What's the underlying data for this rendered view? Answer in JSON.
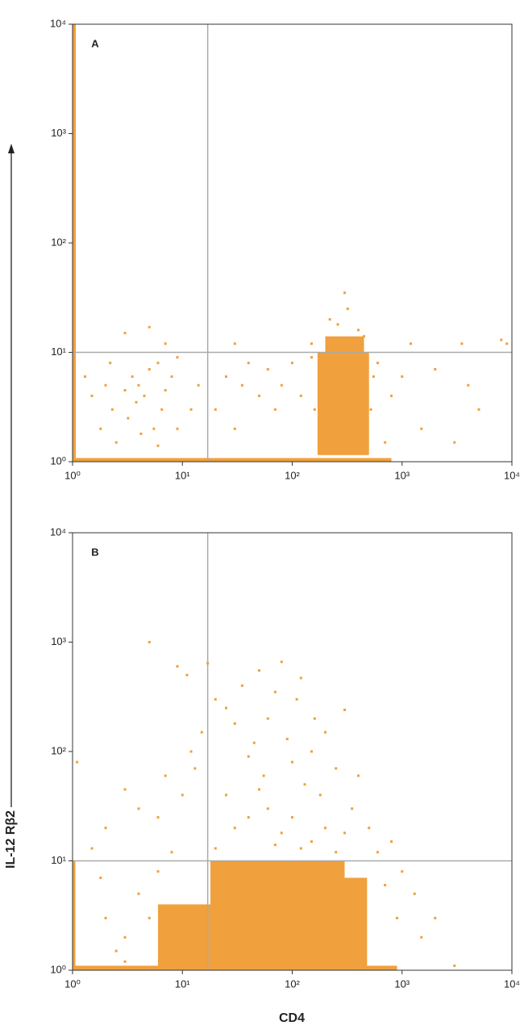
{
  "chart_data": [
    {
      "type": "scatter",
      "panel_label": "A",
      "ylabel": "IL-12 Rβ2",
      "log": true,
      "color": "#f0a03c",
      "xlim": [
        1,
        10000
      ],
      "ylim": [
        1,
        10000
      ],
      "xticks": [
        {
          "value": 1,
          "label": "10⁰"
        },
        {
          "value": 10,
          "label": "10¹"
        },
        {
          "value": 100,
          "label": "10²"
        },
        {
          "value": 1000,
          "label": "10³"
        },
        {
          "value": 10000,
          "label": "10⁴"
        }
      ],
      "yticks": [
        {
          "value": 1,
          "label": "10⁰"
        },
        {
          "value": 10,
          "label": "10¹"
        },
        {
          "value": 100,
          "label": "10²"
        },
        {
          "value": 1000,
          "label": "10³"
        },
        {
          "value": 10000,
          "label": "10⁴"
        }
      ],
      "quadrant": {
        "x": 17,
        "y": 10
      },
      "dense_regions": [
        {
          "x": [
            1,
            1.07
          ],
          "y": [
            1,
            10000
          ]
        },
        {
          "x": [
            1,
            800
          ],
          "y": [
            1,
            1.08
          ]
        },
        {
          "x": [
            170,
            500
          ],
          "y": [
            1.15,
            10
          ]
        },
        {
          "x": [
            200,
            450
          ],
          "y": [
            10,
            14
          ]
        }
      ],
      "x": [
        1.5,
        1.8,
        2,
        2.3,
        2.5,
        3,
        3.2,
        3.5,
        3.8,
        4,
        4.5,
        5,
        5.5,
        6,
        6.5,
        7,
        8,
        9,
        3,
        5,
        7,
        2.2,
        1.3,
        4.2,
        6,
        9,
        12,
        14,
        20,
        25,
        30,
        35,
        40,
        50,
        60,
        70,
        80,
        100,
        120,
        150,
        30,
        220,
        260,
        320,
        300,
        400,
        450,
        600,
        700,
        800,
        1000,
        1200,
        1500,
        2000,
        3000,
        3500,
        4000,
        5000,
        8000,
        9000,
        550,
        520,
        150,
        160
      ],
      "y": [
        4,
        2,
        5,
        3,
        1.5,
        4.5,
        2.5,
        6,
        3.5,
        5,
        4,
        7,
        2,
        8,
        3,
        4.5,
        6,
        2,
        15,
        17,
        12,
        8,
        6,
        1.8,
        1.4,
        9,
        3,
        5,
        3,
        6,
        2,
        5,
        8,
        4,
        7,
        3,
        5,
        8,
        4,
        12,
        12,
        20,
        18,
        25,
        35,
        16,
        14,
        8,
        1.5,
        4,
        6,
        12,
        2,
        7,
        1.5,
        12,
        5,
        3,
        13,
        12,
        6,
        3,
        9,
        3
      ]
    },
    {
      "type": "scatter",
      "panel_label": "B",
      "xlabel": "CD4",
      "log": true,
      "color": "#f0a03c",
      "xlim": [
        1,
        10000
      ],
      "ylim": [
        1,
        10000
      ],
      "xticks": [
        {
          "value": 1,
          "label": "10⁰"
        },
        {
          "value": 10,
          "label": "10¹"
        },
        {
          "value": 100,
          "label": "10²"
        },
        {
          "value": 1000,
          "label": "10³"
        },
        {
          "value": 10000,
          "label": "10⁴"
        }
      ],
      "yticks": [
        {
          "value": 1,
          "label": "10⁰"
        },
        {
          "value": 10,
          "label": "10¹"
        },
        {
          "value": 100,
          "label": "10²"
        },
        {
          "value": 1000,
          "label": "10³"
        },
        {
          "value": 10000,
          "label": "10⁴"
        }
      ],
      "quadrant": {
        "x": 17,
        "y": 10
      },
      "dense_regions": [
        {
          "x": [
            1,
            1.06
          ],
          "y": [
            1,
            10
          ]
        },
        {
          "x": [
            1,
            900
          ],
          "y": [
            1,
            1.1
          ]
        },
        {
          "x": [
            18,
            300
          ],
          "y": [
            1,
            10
          ]
        },
        {
          "x": [
            6,
            18
          ],
          "y": [
            1,
            4
          ]
        },
        {
          "x": [
            300,
            480
          ],
          "y": [
            1,
            7
          ]
        }
      ],
      "x": [
        1.1,
        1.5,
        2,
        3,
        4,
        5,
        6,
        7,
        9,
        10,
        11,
        12,
        13,
        15,
        17,
        20,
        25,
        30,
        35,
        40,
        45,
        50,
        55,
        60,
        70,
        80,
        90,
        100,
        110,
        120,
        130,
        150,
        160,
        180,
        200,
        250,
        300,
        350,
        400,
        500,
        600,
        800,
        1000,
        1300,
        1500,
        2000,
        3000,
        700,
        900,
        2,
        3,
        2.5,
        4,
        1.8,
        6,
        8,
        30,
        40,
        60,
        80,
        100,
        150,
        200,
        250,
        300,
        120,
        70,
        20,
        25,
        50,
        3,
        5
      ],
      "y": [
        80,
        13,
        20,
        45,
        30,
        1000,
        25,
        60,
        600,
        40,
        500,
        100,
        70,
        150,
        640,
        300,
        250,
        180,
        400,
        90,
        120,
        550,
        60,
        200,
        350,
        660,
        130,
        80,
        300,
        470,
        50,
        100,
        200,
        40,
        150,
        70,
        240,
        30,
        60,
        20,
        12,
        15,
        8,
        5,
        2,
        3,
        1.1,
        6,
        3,
        3,
        2,
        1.5,
        5,
        7,
        8,
        12,
        20,
        25,
        30,
        18,
        25,
        15,
        20,
        12,
        18,
        13,
        14,
        13,
        40,
        45,
        1.2,
        3
      ]
    }
  ]
}
